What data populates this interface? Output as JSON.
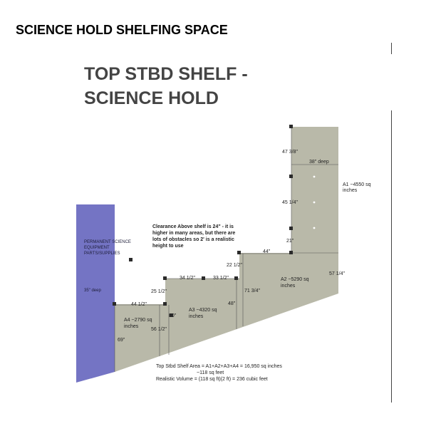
{
  "page_title": "SCIENCE HOLD SHELFING SPACE",
  "heading": {
    "line1": "TOP STBD SHELF -",
    "line2": "SCIENCE HOLD"
  },
  "colors": {
    "shelf_fill": "#b9b9a9",
    "permanent_fill": "#7474c4",
    "marker": "#2b2b2b",
    "heading": "#444444"
  },
  "permanent": {
    "line1": "PERMANENT SCIENCE",
    "line2": "EQUIPMENT",
    "line3": "PARTS/SUPPLIES",
    "depth": "35\" deep"
  },
  "clearance_note": {
    "line1": "Clearance Above shelf is 24\" - it is",
    "line2": "higher in many areas, but there are",
    "line3": "lots of obstacles so 2' is a realistic",
    "line4": "height to use"
  },
  "areas": {
    "a1": {
      "line1": "A1  ~4550 sq",
      "line2": "inches"
    },
    "a2": {
      "line1": "A2  ~5290 sq",
      "line2": "inches"
    },
    "a3": {
      "line1": "A3  ~4320 sq",
      "line2": "inches"
    },
    "a4": {
      "line1": "A4  ~2790 sq",
      "line2": "inches"
    }
  },
  "dimensions": {
    "d47_3_8": "47 3/8\"",
    "d38_deep": "38\" deep",
    "d45_1_4": "45 1/4\"",
    "d21": "21\"",
    "d44_top": "44\"",
    "d57_1_4": "57 1/4\"",
    "d22_1_2": "22 1/2\"",
    "d34_1_2": "34 1/2\"",
    "d33_1_2": "33 1/2\"",
    "d71_3_4": "71 3/4\"",
    "d25_1_2": "25 1/2\"",
    "d48": "48\"",
    "d44_1_2": "44 1/2\"",
    "d80": "80\"",
    "d56_1_2": "56 1/2\"",
    "d69": "69\""
  },
  "summary": {
    "line1": "Top Stbd Shelf Area = A1+A2+A3+A4 = 16,950 sq inches",
    "line2": "~118 sq feet",
    "line3": "Realistic Volume = (118 sq ft)(2 ft) = 236 cubic feet"
  }
}
